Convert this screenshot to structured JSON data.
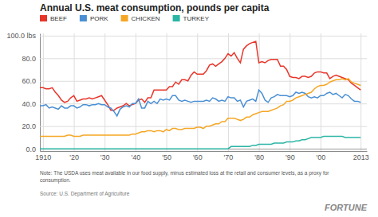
{
  "chart_data": {
    "type": "line",
    "title": "Annual U.S. meat consumption, pounds per capita",
    "annotations": [
      "Note: The USDA uses meat available in our food supply, minus estimated loss at the retail and consumer levels, as a proxy for\nconsumption.",
      "Source: U.S. Department of Agriculture",
      "FORTUNE"
    ],
    "x": [
      1909,
      1910,
      1911,
      1912,
      1913,
      1914,
      1915,
      1916,
      1917,
      1918,
      1919,
      1920,
      1921,
      1922,
      1923,
      1924,
      1925,
      1926,
      1927,
      1928,
      1929,
      1930,
      1931,
      1932,
      1933,
      1934,
      1935,
      1936,
      1937,
      1938,
      1939,
      1940,
      1941,
      1942,
      1943,
      1944,
      1945,
      1946,
      1947,
      1948,
      1949,
      1950,
      1951,
      1952,
      1953,
      1954,
      1955,
      1956,
      1957,
      1958,
      1959,
      1960,
      1961,
      1962,
      1963,
      1964,
      1965,
      1966,
      1967,
      1968,
      1969,
      1970,
      1971,
      1972,
      1973,
      1974,
      1975,
      1976,
      1977,
      1978,
      1979,
      1980,
      1981,
      1982,
      1983,
      1984,
      1985,
      1986,
      1987,
      1988,
      1989,
      1990,
      1991,
      1992,
      1993,
      1994,
      1995,
      1996,
      1997,
      1998,
      1999,
      2000,
      2001,
      2002,
      2003,
      2004,
      2005,
      2006,
      2007,
      2008,
      2009,
      2010,
      2011,
      2012,
      2013
    ],
    "series": [
      {
        "name": "BEEF",
        "color": "#E8352A",
        "values": [
          54,
          54,
          53,
          53,
          54,
          50,
          47,
          43,
          41,
          42,
          45,
          47,
          42,
          43,
          44,
          44,
          45,
          44,
          45,
          46,
          47,
          43,
          39,
          34,
          34,
          36,
          37,
          38,
          40,
          38,
          39,
          40,
          43,
          44,
          41,
          45,
          45,
          52,
          52,
          52,
          52,
          52,
          55,
          55,
          59,
          57,
          61,
          61,
          60,
          65,
          68,
          66,
          66,
          66,
          69,
          74,
          75,
          73,
          75,
          77,
          80,
          84,
          82,
          85,
          80,
          76,
          88,
          91,
          93,
          94,
          95,
          76,
          77,
          76,
          78,
          79,
          79,
          79,
          73,
          73,
          70,
          64,
          63,
          63,
          62,
          64,
          64,
          63,
          64,
          67,
          68,
          68,
          67,
          67,
          62,
          64,
          65,
          64,
          63,
          62,
          61,
          58,
          56,
          54,
          52
        ]
      },
      {
        "name": "PORK",
        "color": "#4A8FD4",
        "values": [
          38,
          38,
          39,
          36,
          37,
          36,
          35,
          38,
          36,
          36,
          38,
          38,
          36,
          37,
          39,
          39,
          38,
          39,
          39,
          40,
          39,
          39,
          37,
          36,
          33,
          29,
          35,
          37,
          38,
          37,
          40,
          40,
          44,
          36,
          36,
          42,
          40,
          42,
          40,
          44,
          43,
          44,
          43,
          47,
          47,
          43,
          42,
          43,
          42,
          41,
          42,
          42,
          42,
          42,
          43,
          42,
          45,
          44,
          42,
          43,
          42,
          46,
          45,
          45,
          42,
          43,
          37,
          42,
          43,
          44,
          42,
          52,
          49,
          43,
          41,
          45,
          46,
          48,
          47,
          47,
          47,
          46,
          47,
          50,
          49,
          50,
          49,
          46,
          45,
          46,
          45,
          47,
          47,
          49,
          50,
          48,
          49,
          47,
          45,
          48,
          47,
          44,
          42,
          42,
          41
        ]
      },
      {
        "name": "CHICKEN",
        "color": "#F5A623",
        "values": [
          11,
          11,
          11,
          11,
          11,
          11,
          11,
          11,
          11,
          12,
          12,
          11,
          11,
          11,
          12,
          12,
          12,
          12,
          12,
          12,
          12,
          12,
          12,
          12,
          12,
          12,
          12,
          12,
          12,
          12,
          13,
          13,
          14,
          15,
          15,
          16,
          16,
          15,
          16,
          16,
          15,
          17,
          16,
          18,
          18,
          17,
          17,
          18,
          18,
          18,
          18,
          19,
          19,
          18,
          20,
          20,
          21,
          22,
          22,
          24,
          24,
          27,
          27,
          27,
          26,
          25,
          26,
          28,
          28,
          30,
          31,
          32,
          33,
          33,
          33,
          34,
          35,
          36,
          38,
          39,
          42,
          42,
          43,
          45,
          46,
          47,
          48,
          49,
          50,
          53,
          55,
          56,
          56,
          57,
          59,
          60,
          61,
          61,
          62,
          61,
          62,
          59,
          58,
          57,
          56
        ]
      },
      {
        "name": "TURKEY",
        "color": "#2AB5A5",
        "values": [
          0,
          0,
          0,
          0,
          0,
          0,
          0,
          0,
          0,
          0,
          0,
          0,
          0,
          0,
          0,
          0,
          0,
          0,
          0,
          0,
          0,
          0,
          0,
          0,
          0,
          0,
          0,
          0,
          0,
          0,
          0,
          0,
          0,
          0,
          0,
          0,
          0,
          0,
          0,
          0,
          0,
          0,
          0,
          0,
          0,
          0,
          0,
          0,
          0,
          0,
          0,
          0,
          0,
          0,
          0,
          0,
          0,
          0,
          0,
          0,
          0,
          0,
          2,
          2,
          2,
          2,
          2,
          2,
          2,
          3,
          3,
          4,
          4,
          4,
          4,
          4,
          5,
          5,
          5,
          5,
          6,
          6,
          6,
          7,
          7,
          8,
          8,
          9,
          10,
          10,
          10,
          10,
          11,
          11,
          11,
          11,
          11,
          11,
          11,
          10,
          10,
          10,
          10,
          10,
          10
        ]
      }
    ],
    "xlim": [
      1909,
      2015
    ],
    "ylim": [
      -2,
      102
    ],
    "xticks": [
      1910,
      {
        "value": 1920,
        "label": "'20"
      },
      {
        "value": 1930,
        "label": "'30"
      },
      {
        "value": 1940,
        "label": "'40"
      },
      {
        "value": 1950,
        "label": "'50"
      },
      {
        "value": 1960,
        "label": "'60"
      },
      {
        "value": 1970,
        "label": "'70"
      },
      {
        "value": 1980,
        "label": "'80"
      },
      {
        "value": 1990,
        "label": "'90"
      },
      {
        "value": 2000,
        "label": "'00"
      },
      2013
    ],
    "yticks": [
      {
        "value": 0,
        "label": "0.0"
      },
      {
        "value": 20,
        "label": "20.0"
      },
      {
        "value": 40,
        "label": "40.0"
      },
      {
        "value": 60,
        "label": "60.0"
      },
      {
        "value": 80,
        "label": "80.0"
      },
      {
        "value": 100,
        "label": "100.0 lbs"
      }
    ],
    "grid": true,
    "legend": "top-left"
  }
}
